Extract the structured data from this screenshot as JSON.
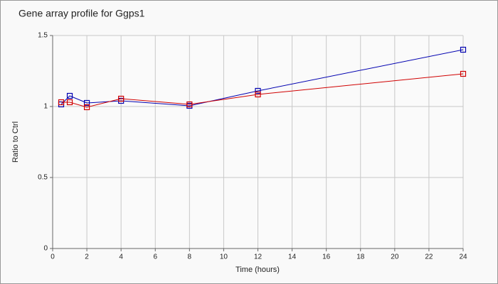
{
  "chart_data": {
    "type": "line",
    "title": "Gene array profile for Ggps1",
    "x_label": "Time (hours)",
    "y_label": "Ratio to Ctrl",
    "x": [
      0.5,
      1,
      2,
      4,
      8,
      12,
      24
    ],
    "series": [
      {
        "color": "#0000b0",
        "values": [
          1.015,
          1.075,
          1.025,
          1.04,
          1.005,
          1.11,
          1.4
        ]
      },
      {
        "color": "#d00000",
        "values": [
          1.03,
          1.03,
          0.995,
          1.055,
          1.015,
          1.085,
          1.23
        ]
      }
    ],
    "xlim": [
      0,
      24
    ],
    "xticks": [
      0,
      2,
      4,
      6,
      8,
      10,
      12,
      14,
      16,
      18,
      20,
      22,
      24
    ],
    "ylim": [
      0,
      1.5
    ],
    "yticks": [
      0,
      0.5,
      1,
      1.5
    ],
    "grid": true
  }
}
